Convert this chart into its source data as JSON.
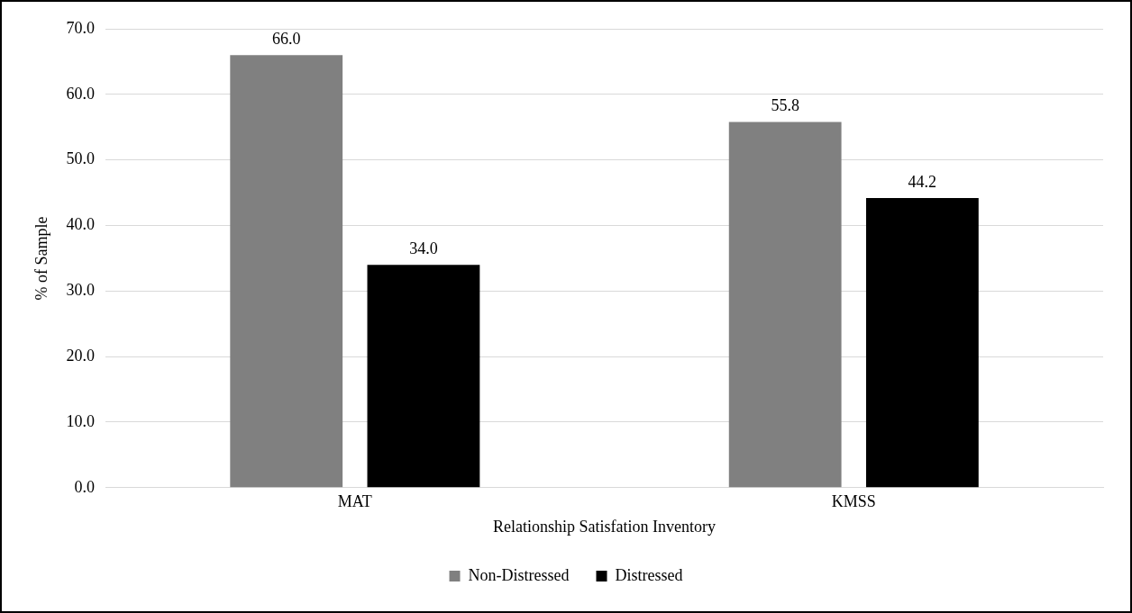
{
  "chart_data": {
    "type": "bar",
    "xlabel": "Relationship Satisfation Inventory",
    "ylabel": "% of Sample",
    "categories": [
      "MAT",
      "KMSS"
    ],
    "series": [
      {
        "name": "Non-Distressed",
        "color": "#808080",
        "values": [
          66.0,
          55.8
        ],
        "value_labels": [
          "66.0",
          "55.8"
        ]
      },
      {
        "name": "Distressed",
        "color": "#000000",
        "values": [
          34.0,
          44.2
        ],
        "value_labels": [
          "34.0",
          "44.2"
        ]
      }
    ],
    "ylim": [
      0,
      70
    ],
    "yticks": [
      {
        "value": 0,
        "label": "0.0"
      },
      {
        "value": 10,
        "label": "10.0"
      },
      {
        "value": 20,
        "label": "20.0"
      },
      {
        "value": 30,
        "label": "30.0"
      },
      {
        "value": 40,
        "label": "40.0"
      },
      {
        "value": 50,
        "label": "50.0"
      },
      {
        "value": 60,
        "label": "60.0"
      },
      {
        "value": 70,
        "label": "70.0"
      }
    ],
    "grid": "y",
    "legend": "bottom"
  }
}
